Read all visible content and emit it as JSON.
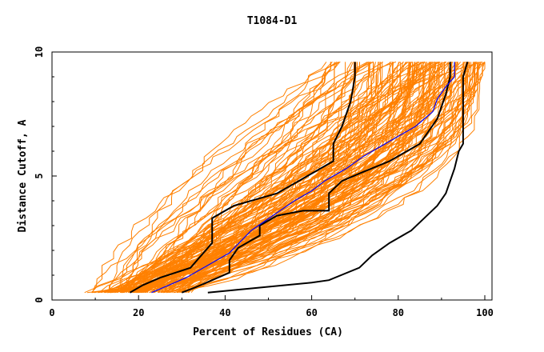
{
  "chart_data": {
    "type": "line",
    "title": "T1084-D1",
    "xlabel": "Percent of Residues (CA)",
    "ylabel": "Distance Cutoff, A",
    "xlim": [
      0,
      100
    ],
    "ylim": [
      0,
      10
    ],
    "x_ticks": [
      "0",
      "20",
      "40",
      "60",
      "80",
      "100"
    ],
    "y_ticks": [
      "0",
      "5",
      "10"
    ],
    "grid": false,
    "background_model_color": "#ff8000",
    "highlight_colors": {
      "black": "#000000",
      "blue": "#0000ff"
    },
    "series": [
      {
        "color": "#000000",
        "points": [
          [
            18,
            0.3
          ],
          [
            21,
            0.6
          ],
          [
            25,
            0.9
          ],
          [
            32,
            1.3
          ],
          [
            37,
            2.3
          ],
          [
            37,
            3.3
          ],
          [
            42,
            3.8
          ],
          [
            52,
            4.3
          ],
          [
            57,
            4.8
          ],
          [
            62,
            5.3
          ],
          [
            65,
            5.6
          ],
          [
            65,
            6.3
          ],
          [
            67,
            7.0
          ],
          [
            69,
            8.0
          ],
          [
            70,
            9.0
          ],
          [
            70,
            9.6
          ]
        ]
      },
      {
        "color": "#000000",
        "points": [
          [
            30,
            0.3
          ],
          [
            33,
            0.5
          ],
          [
            37,
            0.8
          ],
          [
            41,
            1.1
          ],
          [
            41,
            1.6
          ],
          [
            43,
            2.1
          ],
          [
            48,
            2.6
          ],
          [
            48,
            3.0
          ],
          [
            52,
            3.4
          ],
          [
            58,
            3.6
          ],
          [
            64,
            3.6
          ],
          [
            64,
            4.3
          ],
          [
            67,
            4.8
          ],
          [
            71,
            5.1
          ],
          [
            78,
            5.6
          ],
          [
            85,
            6.3
          ],
          [
            89,
            7.3
          ],
          [
            91,
            8.3
          ],
          [
            92,
            9.0
          ],
          [
            92,
            9.6
          ]
        ]
      },
      {
        "color": "#000000",
        "points": [
          [
            36,
            0.3
          ],
          [
            48,
            0.5
          ],
          [
            60,
            0.7
          ],
          [
            64,
            0.8
          ],
          [
            71,
            1.3
          ],
          [
            74,
            1.8
          ],
          [
            78,
            2.3
          ],
          [
            83,
            2.8
          ],
          [
            86,
            3.3
          ],
          [
            89,
            3.8
          ],
          [
            91,
            4.3
          ],
          [
            92,
            4.8
          ],
          [
            93,
            5.3
          ],
          [
            94,
            6.0
          ],
          [
            95,
            6.3
          ],
          [
            95,
            7.3
          ],
          [
            95,
            9.0
          ],
          [
            96,
            9.6
          ]
        ]
      },
      {
        "color": "#0000ff",
        "points": [
          [
            23,
            0.3
          ],
          [
            27,
            0.6
          ],
          [
            31,
            0.9
          ],
          [
            36,
            1.4
          ],
          [
            41,
            1.9
          ],
          [
            46,
            2.8
          ],
          [
            51,
            3.4
          ],
          [
            56,
            4.0
          ],
          [
            60,
            4.4
          ],
          [
            63,
            4.8
          ],
          [
            68,
            5.3
          ],
          [
            72,
            5.8
          ],
          [
            76,
            6.2
          ],
          [
            80,
            6.6
          ],
          [
            84,
            7.0
          ],
          [
            88,
            7.6
          ],
          [
            89,
            8.1
          ],
          [
            91,
            8.6
          ],
          [
            93,
            9.0
          ],
          [
            93,
            9.6
          ]
        ]
      }
    ]
  }
}
